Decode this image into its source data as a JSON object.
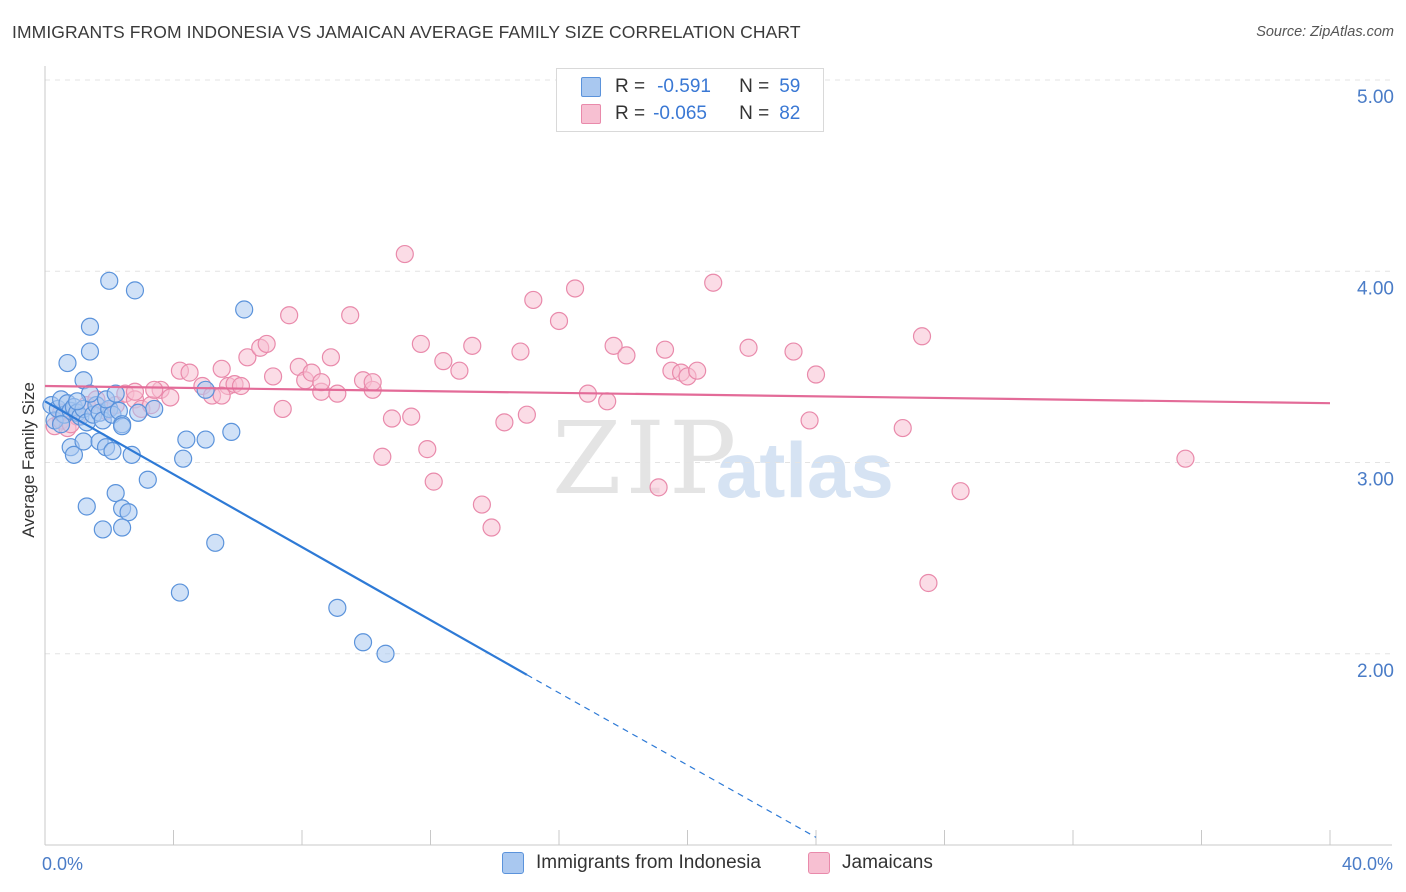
{
  "header": {
    "title": "IMMIGRANTS FROM INDONESIA VS JAMAICAN AVERAGE FAMILY SIZE CORRELATION CHART",
    "source": "Source: ZipAtlas.com"
  },
  "watermark": {
    "zip": "ZIP",
    "atlas": "atlas"
  },
  "legend": {
    "rows": [
      {
        "r_label": "R =",
        "r_value": "-0.591",
        "n_label": "N =",
        "n_value": "59"
      },
      {
        "r_label": "R =",
        "r_value": "-0.065",
        "n_label": "N =",
        "n_value": "82"
      }
    ]
  },
  "bottom_legend": {
    "series1": "Immigrants from Indonesia",
    "series2": "Jamaicans"
  },
  "axes": {
    "ylabel": "Average Family Size",
    "x_min_label": "0.0%",
    "x_max_label": "40.0%",
    "y_ticks": [
      "5.00",
      "4.00",
      "3.00",
      "2.00"
    ]
  },
  "colors": {
    "indonesia_fill": "#a9c8f0",
    "indonesia_stroke": "#5b93db",
    "indonesia_line": "#2e7ad6",
    "jamaica_fill": "#f7c0d2",
    "jamaica_stroke": "#e98aab",
    "jamaica_line": "#e36b98",
    "tick_label": "#4a7cc7"
  },
  "chart_data": {
    "type": "scatter",
    "title": "IMMIGRANTS FROM INDONESIA VS JAMAICAN AVERAGE FAMILY SIZE CORRELATION CHART",
    "xlabel": "",
    "ylabel": "Average Family Size",
    "xlim": [
      0,
      40
    ],
    "ylim": [
      1.0,
      5.1
    ],
    "x_unit": "%",
    "grid": true,
    "legend_position": "top-center",
    "series": [
      {
        "name": "Immigrants from Indonesia",
        "r": -0.591,
        "n": 59,
        "trend": {
          "x0": 0.0,
          "y0": 3.32,
          "x1": 15.0,
          "y1": 1.89,
          "dashed_to_x": 24.0,
          "dashed_to_y": 1.04
        },
        "points": [
          [
            0.2,
            3.3
          ],
          [
            0.3,
            3.22
          ],
          [
            0.4,
            3.28
          ],
          [
            0.5,
            3.33
          ],
          [
            0.6,
            3.25
          ],
          [
            0.7,
            3.31
          ],
          [
            0.8,
            3.27
          ],
          [
            0.9,
            3.29
          ],
          [
            1.0,
            3.26
          ],
          [
            1.1,
            3.24
          ],
          [
            1.2,
            3.28
          ],
          [
            1.3,
            3.21
          ],
          [
            1.5,
            3.25
          ],
          [
            1.6,
            3.3
          ],
          [
            1.7,
            3.26
          ],
          [
            1.8,
            3.22
          ],
          [
            2.0,
            3.28
          ],
          [
            2.1,
            3.25
          ],
          [
            2.3,
            3.27
          ],
          [
            2.4,
            3.2
          ],
          [
            0.7,
            3.52
          ],
          [
            1.2,
            3.43
          ],
          [
            1.4,
            3.36
          ],
          [
            1.9,
            3.33
          ],
          [
            2.2,
            3.36
          ],
          [
            1.4,
            3.71
          ],
          [
            1.4,
            3.58
          ],
          [
            2.0,
            3.95
          ],
          [
            2.8,
            3.9
          ],
          [
            0.8,
            3.08
          ],
          [
            0.9,
            3.04
          ],
          [
            1.2,
            3.11
          ],
          [
            1.7,
            3.11
          ],
          [
            1.9,
            3.08
          ],
          [
            2.1,
            3.06
          ],
          [
            2.4,
            3.19
          ],
          [
            2.7,
            3.04
          ],
          [
            3.2,
            2.91
          ],
          [
            3.4,
            3.28
          ],
          [
            1.3,
            2.77
          ],
          [
            1.8,
            2.65
          ],
          [
            2.2,
            2.84
          ],
          [
            2.4,
            2.76
          ],
          [
            2.6,
            2.74
          ],
          [
            2.4,
            2.66
          ],
          [
            4.3,
            3.02
          ],
          [
            4.4,
            3.12
          ],
          [
            5.0,
            3.38
          ],
          [
            5.0,
            3.12
          ],
          [
            5.8,
            3.16
          ],
          [
            6.2,
            3.8
          ],
          [
            5.3,
            2.58
          ],
          [
            4.2,
            2.32
          ],
          [
            9.1,
            2.24
          ],
          [
            9.9,
            2.06
          ],
          [
            10.6,
            2.0
          ],
          [
            0.5,
            3.2
          ],
          [
            1.0,
            3.32
          ],
          [
            2.9,
            3.26
          ]
        ]
      },
      {
        "name": "Jamaicans",
        "r": -0.065,
        "n": 82,
        "trend": {
          "x0": 0.0,
          "y0": 3.4,
          "x1": 40.0,
          "y1": 3.31
        },
        "points": [
          [
            0.3,
            3.19
          ],
          [
            0.5,
            3.22
          ],
          [
            0.7,
            3.18
          ],
          [
            1.0,
            3.24
          ],
          [
            1.3,
            3.3
          ],
          [
            1.6,
            3.33
          ],
          [
            1.9,
            3.27
          ],
          [
            2.2,
            3.3
          ],
          [
            2.5,
            3.36
          ],
          [
            2.8,
            3.33
          ],
          [
            3.0,
            3.28
          ],
          [
            3.3,
            3.3
          ],
          [
            3.6,
            3.38
          ],
          [
            3.9,
            3.34
          ],
          [
            4.2,
            3.48
          ],
          [
            4.5,
            3.47
          ],
          [
            4.9,
            3.4
          ],
          [
            5.2,
            3.35
          ],
          [
            5.5,
            3.49
          ],
          [
            5.7,
            3.4
          ],
          [
            5.9,
            3.41
          ],
          [
            6.1,
            3.4
          ],
          [
            6.3,
            3.55
          ],
          [
            6.7,
            3.6
          ],
          [
            6.9,
            3.62
          ],
          [
            7.1,
            3.45
          ],
          [
            7.4,
            3.28
          ],
          [
            7.6,
            3.77
          ],
          [
            7.9,
            3.5
          ],
          [
            8.1,
            3.43
          ],
          [
            8.3,
            3.47
          ],
          [
            8.6,
            3.37
          ],
          [
            8.9,
            3.55
          ],
          [
            9.1,
            3.36
          ],
          [
            9.5,
            3.77
          ],
          [
            9.9,
            3.43
          ],
          [
            10.2,
            3.38
          ],
          [
            10.5,
            3.03
          ],
          [
            10.8,
            3.23
          ],
          [
            11.2,
            4.09
          ],
          [
            11.4,
            3.24
          ],
          [
            11.7,
            3.62
          ],
          [
            11.9,
            3.07
          ],
          [
            12.1,
            2.9
          ],
          [
            12.4,
            3.53
          ],
          [
            12.9,
            3.48
          ],
          [
            13.3,
            3.61
          ],
          [
            13.6,
            2.78
          ],
          [
            13.9,
            2.66
          ],
          [
            14.3,
            3.21
          ],
          [
            14.8,
            3.58
          ],
          [
            15.0,
            3.25
          ],
          [
            15.2,
            3.85
          ],
          [
            16.0,
            3.74
          ],
          [
            16.5,
            3.91
          ],
          [
            16.9,
            3.36
          ],
          [
            17.5,
            3.32
          ],
          [
            17.7,
            3.61
          ],
          [
            18.1,
            3.56
          ],
          [
            19.1,
            2.87
          ],
          [
            19.3,
            3.59
          ],
          [
            19.5,
            3.48
          ],
          [
            19.8,
            3.47
          ],
          [
            20.0,
            3.45
          ],
          [
            20.3,
            3.48
          ],
          [
            20.8,
            3.94
          ],
          [
            21.9,
            3.6
          ],
          [
            23.3,
            3.58
          ],
          [
            23.8,
            3.22
          ],
          [
            24.0,
            3.46
          ],
          [
            26.7,
            3.18
          ],
          [
            27.3,
            3.66
          ],
          [
            27.5,
            2.37
          ],
          [
            28.5,
            2.85
          ],
          [
            35.5,
            3.02
          ],
          [
            3.4,
            3.38
          ],
          [
            5.5,
            3.35
          ],
          [
            8.6,
            3.42
          ],
          [
            10.2,
            3.42
          ],
          [
            0.5,
            3.26
          ],
          [
            2.8,
            3.37
          ],
          [
            0.8,
            3.2
          ]
        ]
      }
    ]
  }
}
